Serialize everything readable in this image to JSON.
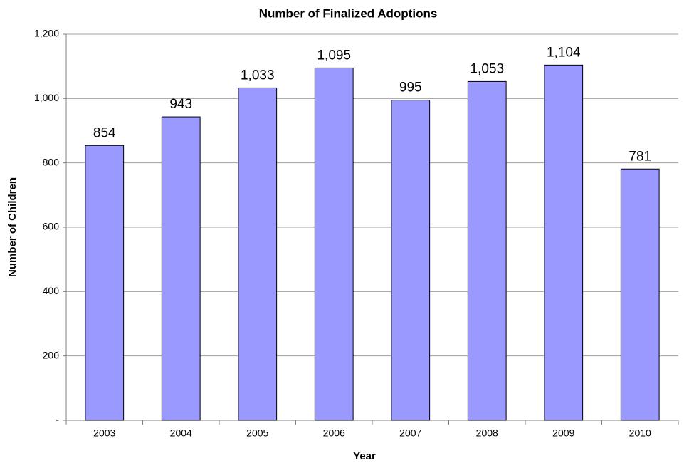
{
  "chart_data": {
    "type": "bar",
    "title": "Number of Finalized Adoptions",
    "x_label": "Year",
    "y_label": "Number of Children",
    "categories": [
      "2003",
      "2004",
      "2005",
      "2006",
      "2007",
      "2008",
      "2009",
      "2010"
    ],
    "values": [
      854,
      943,
      1033,
      1095,
      995,
      1053,
      1104,
      781
    ],
    "value_labels": [
      "854",
      "943",
      "1,033",
      "1,095",
      "995",
      "1,053",
      "1,104",
      "781"
    ],
    "color": "#9999ff",
    "ylim": [
      0,
      1200
    ],
    "yticks": [
      {
        "value": 0,
        "label": "-"
      },
      200,
      400,
      600,
      800,
      {
        "value": 1000,
        "label": "1,000"
      },
      {
        "value": 1200,
        "label": "1,200"
      }
    ],
    "grid": true
  }
}
